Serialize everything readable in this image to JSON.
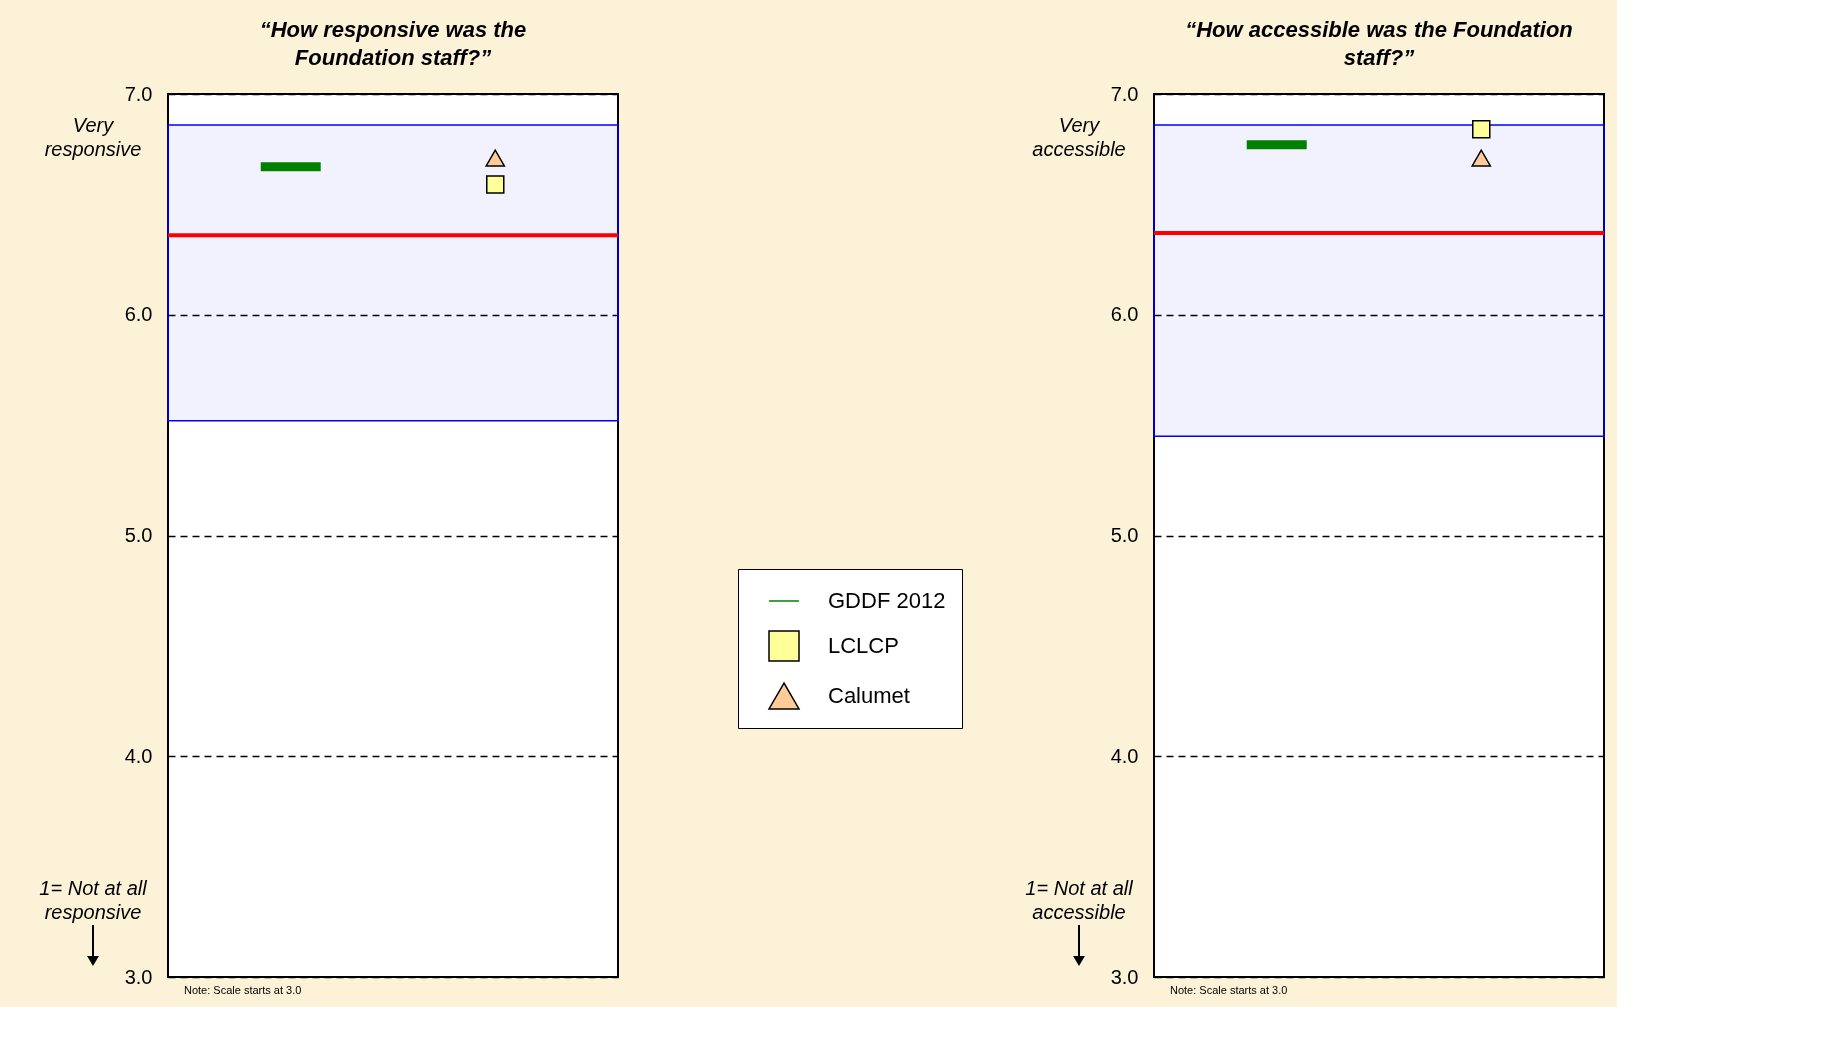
{
  "chart_data": [
    {
      "type": "scatter",
      "title": "“How responsive was the\nFoundation staff?”",
      "categories": [
        null,
        null
      ],
      "ylim": [
        3,
        7
      ],
      "yticks": [
        {
          "value": 3,
          "label": "3.0"
        },
        {
          "value": 4,
          "label": "4.0"
        },
        {
          "value": 5,
          "label": "5.0"
        },
        {
          "value": 6,
          "label": "6.0"
        },
        {
          "value": 7,
          "label": "7.0"
        }
      ],
      "grid": "y",
      "legend": "right",
      "series": [
        {
          "name": "LCLCP",
          "color": "#ffff99",
          "marker": "square",
          "values": [
            null,
            6.59
          ]
        },
        {
          "name": "Calumet",
          "color": "#ffcc99",
          "marker": "triangle",
          "values": [
            null,
            6.71
          ]
        }
      ],
      "bands": [
        {
          "axis": "y",
          "from": 5.52,
          "to": 6.86,
          "color": "#0000ff"
        }
      ],
      "ref_lines": [
        {
          "axis": "y",
          "value": 6.36,
          "color": "#ff0000"
        },
        {
          "axis": "y",
          "value": 6.67,
          "color": "#008000",
          "label": "GDDF 2012"
        }
      ],
      "annotations": [
        "Very\nresponsive",
        "1= Not at all\nresponsive",
        "Note: Scale starts at 3.0"
      ]
    },
    {
      "type": "scatter",
      "title": "“How accessible was the Foundation\nstaff?”",
      "categories": [
        null,
        null
      ],
      "ylim": [
        3,
        7
      ],
      "yticks": [
        {
          "value": 3,
          "label": "3.0"
        },
        {
          "value": 4,
          "label": "4.0"
        },
        {
          "value": 5,
          "label": "5.0"
        },
        {
          "value": 6,
          "label": "6.0"
        },
        {
          "value": 7,
          "label": "7.0"
        }
      ],
      "grid": "y",
      "series": [
        {
          "color": "#ffff99",
          "marker": "square",
          "values": [
            null,
            6.84
          ]
        },
        {
          "color": "#ffcc99",
          "marker": "triangle",
          "values": [
            null,
            6.71
          ]
        }
      ],
      "bands": [
        {
          "axis": "y",
          "from": 5.45,
          "to": 6.86,
          "color": "#0000ff"
        }
      ],
      "ref_lines": [
        {
          "axis": "y",
          "value": 6.37,
          "color": "#ff0000"
        },
        {
          "axis": "y",
          "value": 6.77,
          "color": "#008000"
        }
      ],
      "annotations": [
        "Very\naccessible",
        "1= Not at all\naccessible",
        "Note: Scale starts at 3.0"
      ]
    }
  ]
}
